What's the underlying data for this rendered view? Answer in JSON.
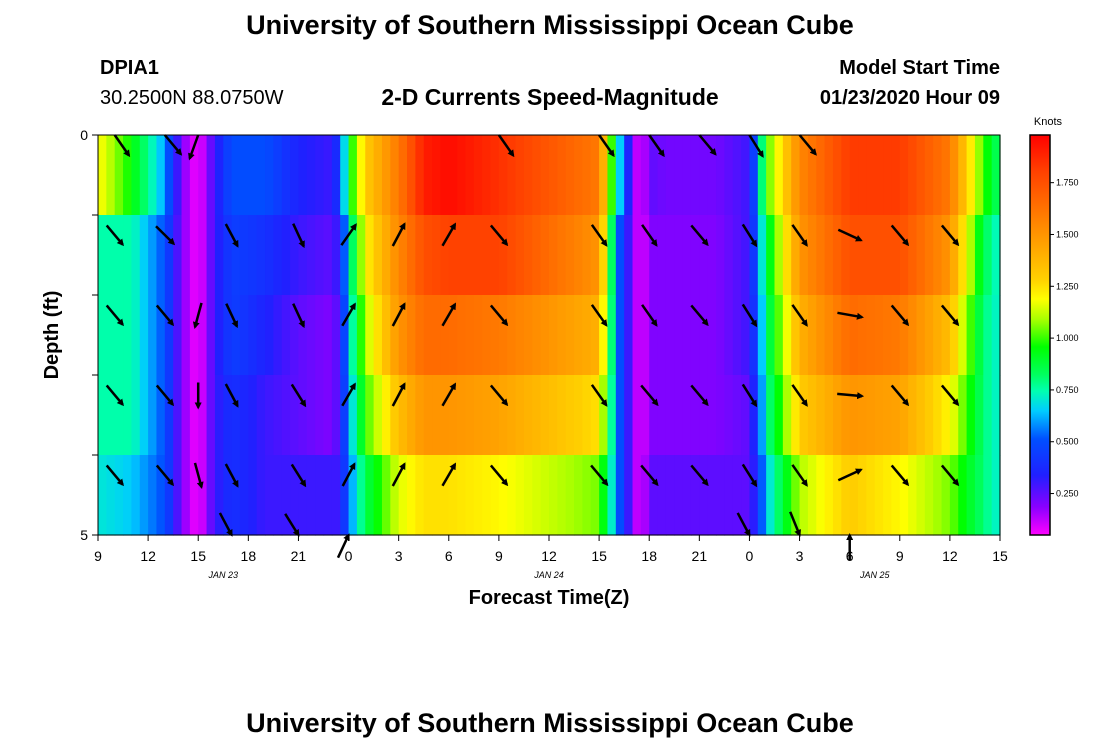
{
  "header": {
    "title": "University of Southern Mississippi Ocean Cube",
    "station_id": "DPIA1",
    "coordinates": "30.2500N 88.0750W",
    "subtitle": "2-D Currents Speed-Magnitude",
    "start_label": "Model Start Time",
    "start_value": "01/23/2020 Hour 09"
  },
  "footer": {
    "title": "University of Southern Mississippi Ocean Cube"
  },
  "chart_data": {
    "type": "heatmap",
    "title": "2-D Currents Speed-Magnitude",
    "xlabel": "Forecast Time(Z)",
    "ylabel": "Depth (ft)",
    "x_unit": "hours since 01/23/2020 09Z",
    "x_range": [
      0,
      54
    ],
    "y_range": [
      0,
      5
    ],
    "y_ticks": [
      0,
      1,
      2,
      3,
      4,
      5
    ],
    "y_tick_labels": [
      "0",
      "",
      "",
      "",
      "",
      "5"
    ],
    "x_ticks": [
      0,
      3,
      6,
      9,
      12,
      15,
      18,
      21,
      24,
      27,
      30,
      33,
      36,
      39,
      42,
      45,
      48,
      51,
      54
    ],
    "x_tick_labels": [
      "9",
      "12",
      "15",
      "18",
      "21",
      "0",
      "3",
      "6",
      "9",
      "12",
      "15",
      "18",
      "21",
      "0",
      "3",
      "6",
      "9",
      "12",
      "15"
    ],
    "date_labels": [
      {
        "x": 7.5,
        "label": "JAN 23"
      },
      {
        "x": 27,
        "label": "JAN 24"
      },
      {
        "x": 46.5,
        "label": "JAN 25"
      }
    ],
    "colorbar": {
      "unit": "Knots",
      "min": 0.05,
      "max": 1.98,
      "ticks": [
        0.25,
        0.5,
        0.75,
        1.0,
        1.25,
        1.5,
        1.75
      ],
      "tick_labels": [
        "0.250",
        "0.500",
        "0.750",
        "1.000",
        "1.250",
        "1.500",
        "1.750"
      ]
    },
    "speed_keyframes": {
      "times": [
        0,
        2,
        4,
        5,
        6,
        7,
        8,
        10,
        12,
        14,
        14.5,
        15,
        16,
        18,
        19.5,
        21,
        24,
        30,
        31,
        32,
        32.5,
        33,
        34,
        37,
        39,
        39.5,
        40,
        42,
        45,
        48,
        51,
        53,
        54
      ],
      "depth_levels": [
        0.25,
        1.25,
        2.25,
        3.25,
        4.25
      ],
      "rows": [
        [
          1.2,
          0.95,
          0.6,
          0.2,
          0.05,
          0.3,
          0.5,
          0.5,
          0.35,
          0.3,
          0.45,
          0.9,
          1.3,
          1.6,
          1.9,
          1.95,
          1.85,
          1.6,
          0.8,
          0.2,
          0.05,
          0.25,
          0.22,
          0.22,
          0.3,
          0.6,
          1.0,
          1.55,
          1.82,
          1.82,
          1.6,
          1.0,
          0.8
        ],
        [
          0.75,
          0.75,
          0.5,
          0.2,
          0.05,
          0.3,
          0.45,
          0.4,
          0.3,
          0.25,
          0.35,
          0.7,
          1.2,
          1.55,
          1.75,
          1.8,
          1.8,
          1.5,
          0.6,
          0.2,
          0.05,
          0.2,
          0.2,
          0.2,
          0.3,
          0.55,
          0.85,
          1.5,
          1.75,
          1.75,
          1.5,
          0.85,
          0.7
        ],
        [
          0.75,
          0.75,
          0.5,
          0.2,
          0.05,
          0.3,
          0.45,
          0.35,
          0.25,
          0.2,
          0.3,
          0.65,
          1.1,
          1.5,
          1.65,
          1.65,
          1.6,
          1.4,
          0.6,
          0.2,
          0.05,
          0.2,
          0.2,
          0.2,
          0.3,
          0.5,
          0.8,
          1.4,
          1.65,
          1.6,
          1.35,
          0.8,
          0.7
        ],
        [
          0.75,
          0.75,
          0.5,
          0.2,
          0.05,
          0.3,
          0.4,
          0.3,
          0.25,
          0.2,
          0.3,
          0.6,
          1.0,
          1.35,
          1.5,
          1.5,
          1.45,
          1.25,
          0.6,
          0.2,
          0.05,
          0.2,
          0.2,
          0.2,
          0.25,
          0.45,
          0.75,
          1.3,
          1.5,
          1.45,
          1.2,
          0.8,
          0.7
        ],
        [
          0.7,
          0.65,
          0.5,
          0.2,
          0.05,
          0.3,
          0.4,
          0.3,
          0.3,
          0.3,
          0.3,
          0.55,
          0.85,
          1.15,
          1.25,
          1.25,
          1.2,
          1.05,
          0.6,
          0.2,
          0.05,
          0.25,
          0.25,
          0.25,
          0.25,
          0.4,
          0.65,
          1.1,
          1.3,
          1.2,
          1.05,
          0.8,
          0.7
        ]
      ]
    },
    "current_vectors": {
      "unit": "direction toward, degrees from north",
      "times": [
        1,
        4,
        6,
        8,
        12,
        15,
        18,
        21,
        24,
        30,
        33,
        36,
        39,
        42,
        45,
        48,
        51
      ],
      "depths": [
        0,
        1.25,
        2.25,
        3.25,
        4.25,
        5.0
      ],
      "directions": [
        [
          145,
          140,
          200,
          null,
          null,
          null,
          null,
          null,
          145,
          145,
          145,
          140,
          148,
          140,
          null,
          null,
          null
        ],
        [
          140,
          135,
          null,
          152,
          155,
          35,
          28,
          30,
          140,
          145,
          145,
          140,
          148,
          145,
          115,
          140,
          140
        ],
        [
          140,
          140,
          195,
          155,
          155,
          30,
          28,
          30,
          140,
          145,
          145,
          140,
          148,
          145,
          100,
          140,
          140
        ],
        [
          140,
          140,
          180,
          152,
          148,
          30,
          28,
          30,
          140,
          145,
          140,
          140,
          148,
          145,
          95,
          140,
          140
        ],
        [
          140,
          140,
          165,
          152,
          148,
          28,
          28,
          30,
          140,
          140,
          140,
          140,
          148,
          145,
          65,
          140,
          140
        ],
        [
          null,
          null,
          null,
          152,
          148,
          25,
          null,
          null,
          null,
          null,
          null,
          null,
          152,
          158,
          0,
          null,
          null
        ]
      ]
    }
  }
}
